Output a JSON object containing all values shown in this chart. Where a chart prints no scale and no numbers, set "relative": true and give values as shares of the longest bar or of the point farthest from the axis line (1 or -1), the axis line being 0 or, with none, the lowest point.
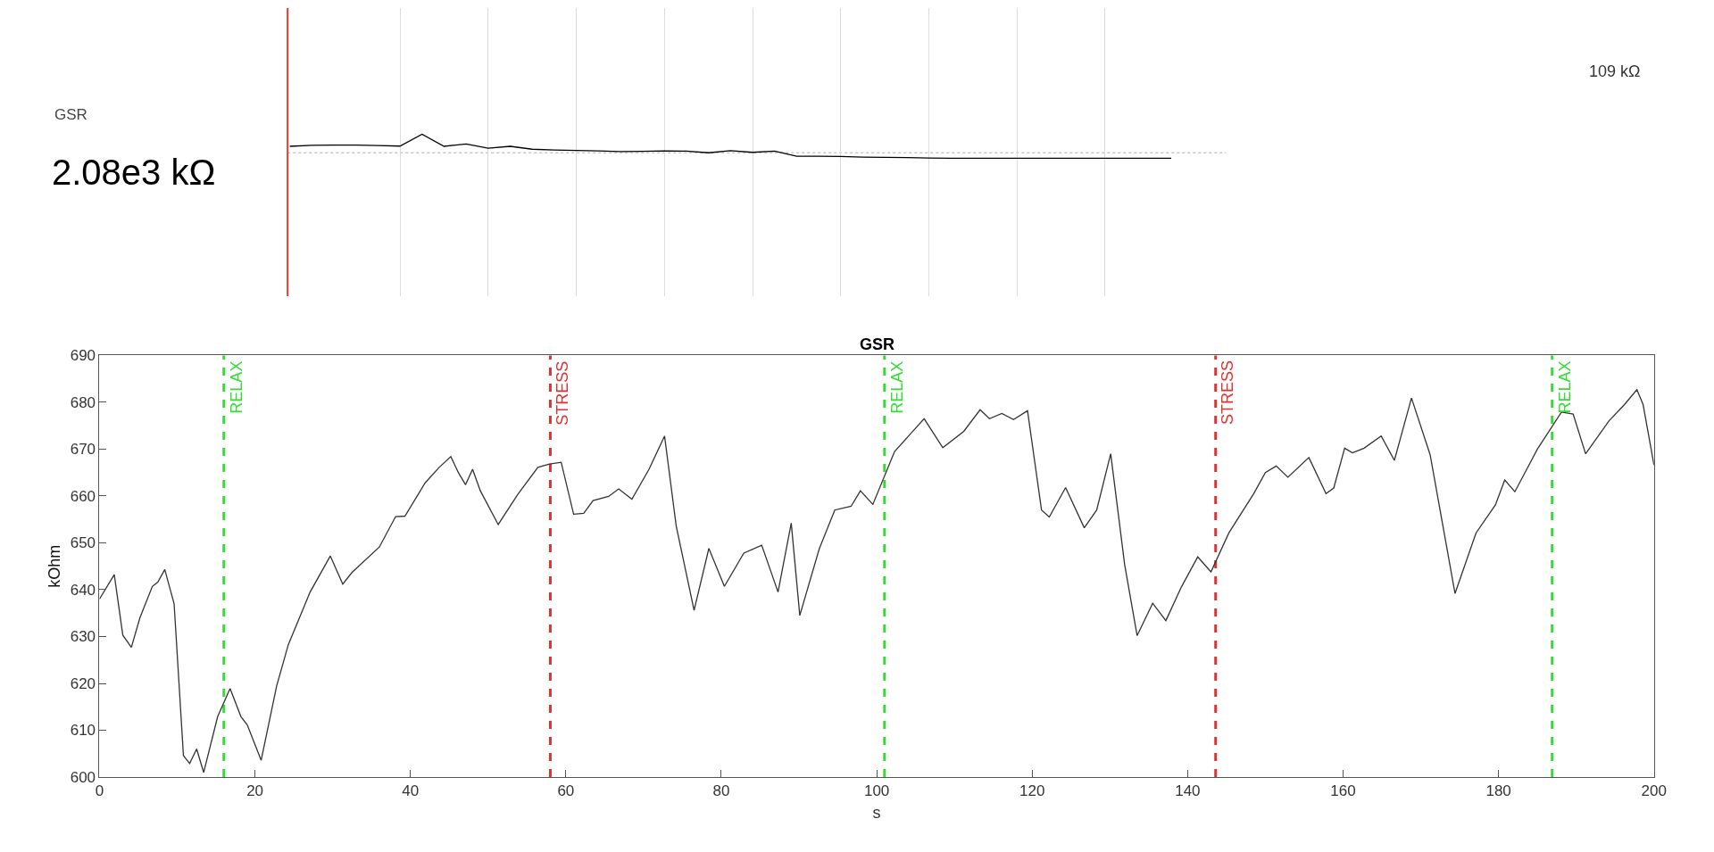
{
  "chart_data": [
    {
      "type": "line",
      "annotations": [
        "GSR",
        "2.08e3 kΩ",
        "109 kΩ"
      ],
      "relative": true,
      "grid": "x",
      "categories": [
        null,
        null,
        null,
        null,
        null,
        null,
        null,
        null,
        null,
        null,
        null,
        null,
        null,
        null,
        null,
        null,
        null,
        null,
        null,
        null,
        null,
        null,
        null,
        null,
        null,
        null,
        null,
        null,
        null,
        null,
        null,
        null,
        null,
        null,
        null,
        null,
        null,
        null,
        null,
        null,
        null
      ],
      "series": [
        {
          "color": "#000000",
          "values": [
            0.5,
            0.54,
            0.55,
            0.55,
            0.53,
            0.51,
            1,
            0.5,
            0.6,
            0.42,
            0.5,
            0.38,
            0.35,
            0.33,
            0.31,
            0.28,
            0.29,
            0.31,
            0.3,
            0.23,
            0.32,
            0.25,
            0.3,
            0.09,
            0.09,
            0.08,
            0.05,
            0.04,
            0.03,
            0.01,
            0,
            0,
            0,
            0,
            0,
            0,
            0,
            0,
            0,
            0,
            0
          ]
        }
      ],
      "ref_lines": [
        {
          "axis": "y",
          "value": 0.23,
          "color": "#c8c8c8",
          "line_style": "dotted"
        }
      ]
    },
    {
      "type": "line",
      "title": "GSR",
      "xlabel": "s",
      "ylabel": "kOhm",
      "grid": false,
      "xlim": [
        0,
        200
      ],
      "xticks": [
        0,
        20,
        40,
        60,
        80,
        100,
        120,
        140,
        160,
        180,
        200
      ],
      "ylim": [
        600,
        690
      ],
      "yticks": [
        600,
        610,
        620,
        630,
        640,
        650,
        660,
        670,
        680,
        690
      ],
      "x": [
        0,
        1.9,
        3.0,
        4.1,
        5.2,
        6.8,
        7.5,
        8.4,
        9.6,
        10.8,
        11.6,
        12.5,
        13.4,
        15.2,
        16.8,
        18.2,
        19.0,
        20.8,
        22.8,
        24.3,
        27.1,
        29.7,
        31.3,
        32.5,
        36.0,
        38.1,
        39.3,
        41.9,
        43.7,
        45.2,
        46.2,
        47.1,
        48.0,
        49.0,
        51.3,
        53.8,
        56.4,
        57.9,
        59.4,
        61.0,
        62.3,
        63.5,
        65.5,
        66.8,
        68.5,
        70.7,
        72.7,
        74.2,
        76.5,
        78.4,
        80.4,
        82.9,
        85.2,
        87.3,
        89.0,
        90.1,
        92.6,
        94.6,
        96.7,
        97.9,
        99.5,
        102.3,
        106.1,
        108.5,
        111.2,
        113.3,
        114.5,
        116.1,
        117.6,
        119.4,
        121.2,
        122.2,
        124.3,
        126.7,
        128.3,
        130.1,
        131.9,
        133.5,
        135.5,
        137.2,
        139.2,
        141.3,
        143.0,
        145.3,
        148.5,
        150.0,
        151.4,
        152.9,
        155.6,
        157.8,
        158.8,
        160.2,
        161.2,
        162.7,
        164.9,
        166.6,
        168.8,
        171.2,
        174.4,
        177.1,
        179.6,
        180.8,
        182.1,
        185.0,
        188.1,
        189.6,
        191.2,
        194.2,
        196.2,
        197.8,
        198.6,
        200.0
      ],
      "series": [
        {
          "color": "#333333",
          "values": [
            638,
            643.2,
            630.3,
            627.7,
            634,
            640.7,
            641.6,
            644.3,
            637,
            604.6,
            602.9,
            606,
            601,
            612.9,
            618.9,
            612.9,
            611.2,
            603.6,
            619.5,
            628.3,
            639.5,
            647.2,
            641.2,
            643.7,
            649.1,
            655.6,
            655.7,
            662.8,
            666.1,
            668.4,
            664.9,
            662.4,
            665.7,
            661.1,
            653.9,
            660.3,
            666.1,
            666.8,
            667.2,
            656.1,
            656.3,
            659,
            659.9,
            661.5,
            659.3,
            665.7,
            672.8,
            653.6,
            635.6,
            648.8,
            640.7,
            647.8,
            649.5,
            639.5,
            654.2,
            634.5,
            648.7,
            657,
            657.8,
            661.1,
            658.2,
            669.5,
            676.5,
            670.3,
            673.8,
            678.4,
            676.5,
            677.6,
            676.3,
            678.2,
            657,
            655.5,
            661.8,
            653.2,
            657,
            669,
            645.3,
            630.2,
            637.1,
            633.4,
            640.6,
            647,
            643.8,
            652.1,
            660.5,
            665,
            666.4,
            664,
            668.2,
            660.5,
            661.7,
            670.2,
            669.2,
            670.2,
            672.8,
            667.6,
            680.9,
            668.8,
            639.2,
            652.1,
            658.1,
            663.4,
            660.9,
            670,
            677.9,
            677.5,
            669,
            676,
            679.5,
            682.7,
            679.5,
            666.6
          ]
        }
      ],
      "ref_lines": [
        {
          "axis": "x",
          "value": 16,
          "label": "RELAX",
          "color": "#33dd33",
          "line_style": "dashed"
        },
        {
          "axis": "x",
          "value": 58,
          "label": "STRESS",
          "color": "#dd3333",
          "line_style": "dashed"
        },
        {
          "axis": "x",
          "value": 101,
          "label": "RELAX",
          "color": "#33dd33",
          "line_style": "dashed"
        },
        {
          "axis": "x",
          "value": 143.6,
          "label": "STRESS",
          "color": "#dd3333",
          "line_style": "dashed"
        },
        {
          "axis": "x",
          "value": 186.9,
          "label": "RELAX",
          "color": "#33dd33",
          "line_style": "dashed"
        }
      ]
    }
  ]
}
